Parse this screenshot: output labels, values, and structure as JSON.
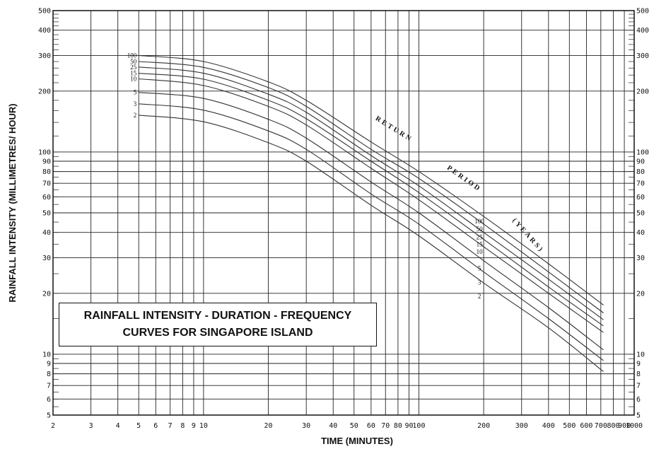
{
  "chart_data": {
    "type": "line",
    "title_lines": [
      "RAINFALL INTENSITY - DURATION -  FREQUENCY",
      "CURVES FOR SINGAPORE ISLAND"
    ],
    "xlabel": "TIME (MINUTES)",
    "ylabel": "RAINFALL INTENSITY  (MILLIMETRES/  HOUR)",
    "x_scale": "log",
    "y_scale": "log",
    "xlim": [
      2,
      1000
    ],
    "ylim": [
      5,
      500
    ],
    "grid": true,
    "x_ticks": [
      "2",
      "3",
      "4",
      "5",
      "6",
      "7",
      "8",
      "9",
      "10",
      "20",
      "30",
      "40",
      "50",
      "60",
      "70",
      "80",
      "90",
      "100",
      "200",
      "300",
      "400",
      "500",
      "600",
      "700",
      "800",
      "900",
      "1000"
    ],
    "y_ticks_left": [
      "5",
      "6",
      "7",
      "8",
      "9",
      "10",
      "20",
      "30",
      "40",
      "50",
      "60",
      "70",
      "80",
      "90",
      "100",
      "200",
      "300",
      "400",
      "500"
    ],
    "y_ticks_right": [
      "5",
      "6",
      "7",
      "8",
      "9",
      "10",
      "20",
      "30",
      "40",
      "50",
      "60",
      "70",
      "80",
      "90",
      "100",
      "200",
      "300",
      "400",
      "500"
    ],
    "x": [
      5,
      10,
      20,
      30,
      60,
      100,
      200,
      400,
      720
    ],
    "series": [
      {
        "name": "100",
        "values": [
          300,
          280,
          222,
          180,
          112,
          80,
          48,
          28,
          17.5
        ]
      },
      {
        "name": "50",
        "values": [
          280,
          262,
          208,
          168,
          103,
          74,
          44,
          25.5,
          16
        ]
      },
      {
        "name": "25",
        "values": [
          263,
          245,
          193,
          157,
          96,
          68,
          40,
          23.5,
          14.8
        ]
      },
      {
        "name": "15",
        "values": [
          245,
          229,
          180,
          146,
          90,
          63,
          37,
          21.5,
          13.8
        ]
      },
      {
        "name": "10",
        "values": [
          230,
          213,
          168,
          136,
          83,
          58,
          34,
          20,
          12.8
        ]
      },
      {
        "name": "5",
        "values": [
          197,
          184,
          145,
          117,
          71,
          50,
          29,
          17,
          10.5
        ]
      },
      {
        "name": "3",
        "values": [
          173,
          161,
          127,
          103,
          62,
          44,
          25.5,
          15,
          9.3
        ]
      },
      {
        "name": "2",
        "values": [
          152,
          141,
          111,
          90,
          54.5,
          38.5,
          22.5,
          13.5,
          8.2
        ]
      }
    ],
    "annotations": [
      "RETURN",
      "PERIOD",
      "(YEARS)"
    ]
  }
}
